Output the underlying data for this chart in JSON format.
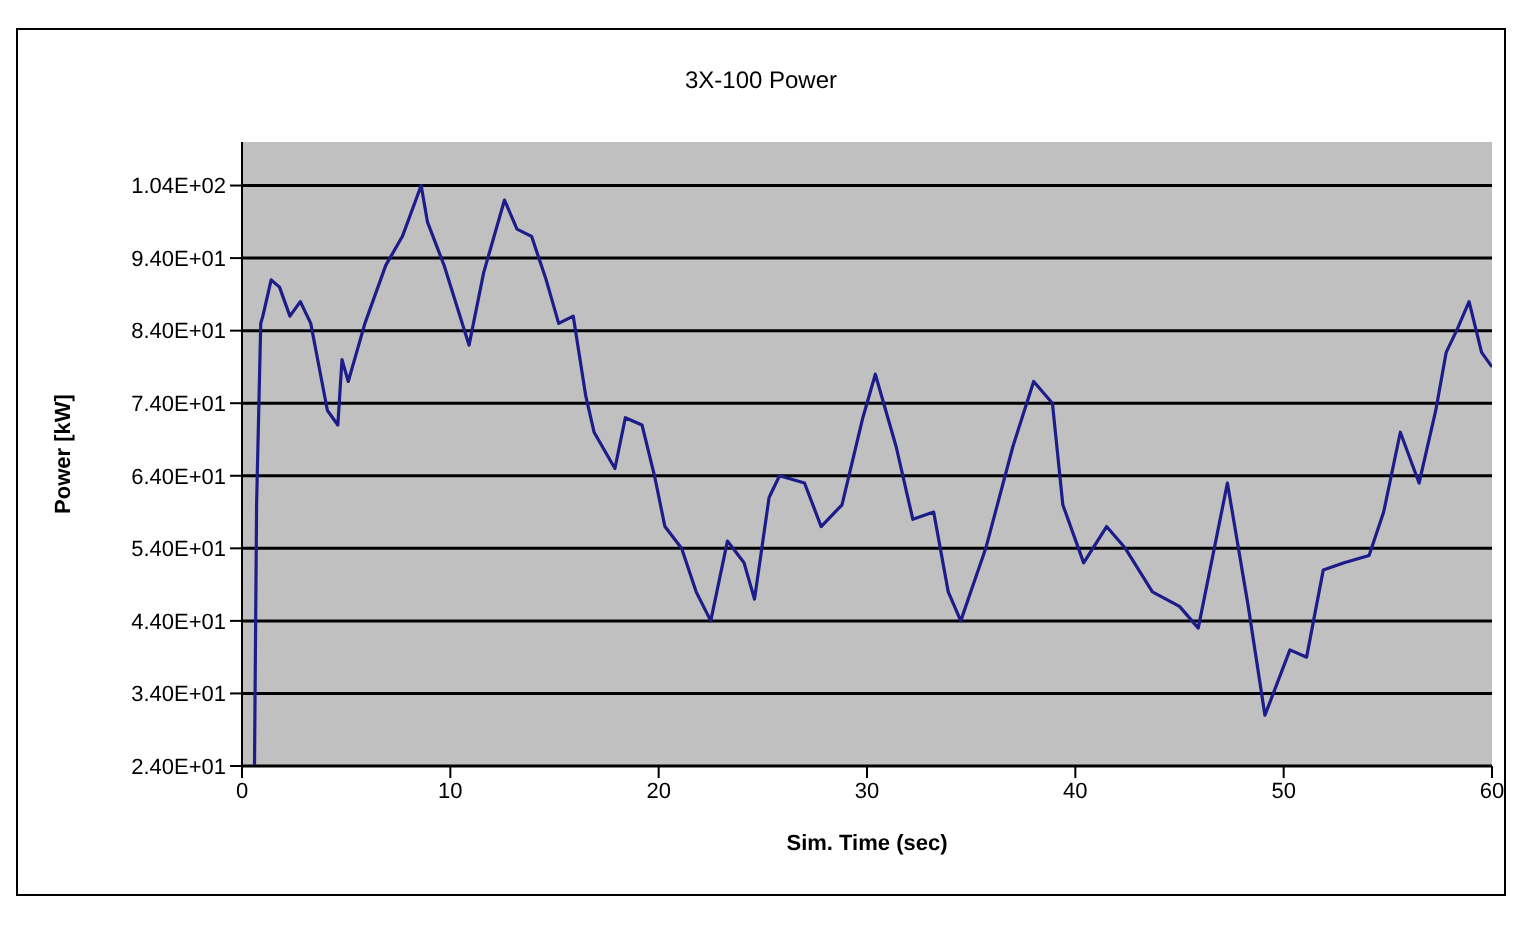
{
  "chart_data": {
    "type": "line",
    "title": "3X-100 Power",
    "xlabel": "Sim. Time (sec)",
    "ylabel": "Power [kW]",
    "x": [
      0.6,
      0.7,
      0.9,
      1.0,
      1.4,
      1.8,
      2.3,
      2.8,
      3.3,
      3.7,
      4.1,
      4.6,
      4.8,
      5.1,
      5.9,
      6.9,
      7.7,
      8.6,
      8.9,
      9.7,
      10.9,
      11.6,
      12.6,
      13.2,
      13.9,
      14.6,
      15.2,
      15.9,
      16.5,
      16.9,
      17.9,
      18.4,
      19.2,
      19.8,
      20.3,
      21.1,
      21.8,
      22.5,
      23.3,
      24.1,
      24.6,
      25.3,
      25.8,
      27.0,
      27.8,
      28.8,
      29.8,
      30.4,
      31.4,
      32.2,
      33.2,
      33.9,
      34.5,
      35.7,
      37.0,
      38.0,
      38.9,
      39.4,
      40.4,
      41.5,
      42.4,
      43.7,
      45.0,
      45.9,
      47.3,
      48.3,
      49.1,
      50.3,
      51.1,
      51.9,
      52.9,
      54.1,
      54.8,
      55.6,
      56.5,
      57.3,
      57.8,
      58.3,
      58.9,
      59.5,
      60.0
    ],
    "series": [
      {
        "color": "#1c1c8a",
        "values": [
          24,
          60,
          85,
          86,
          91,
          90,
          86,
          88,
          85,
          79,
          73,
          71,
          80,
          77,
          85,
          93,
          97,
          104,
          99,
          93,
          82,
          92,
          102,
          98,
          97,
          91,
          85,
          86,
          75,
          70,
          65,
          72,
          71,
          64,
          57,
          54,
          48,
          44,
          55,
          52,
          47,
          61,
          64,
          63,
          57,
          60,
          72,
          78,
          68,
          58,
          59,
          48,
          44,
          54,
          68,
          77,
          74,
          60,
          52,
          57,
          54,
          48,
          46,
          43,
          63,
          46,
          31,
          40,
          39,
          51,
          52,
          53,
          59,
          70,
          63,
          73,
          81,
          84,
          88,
          81,
          79
        ]
      }
    ],
    "xlim": [
      0,
      60
    ],
    "xticks": [
      0,
      10,
      20,
      30,
      40,
      50,
      60
    ],
    "ylim": [
      24,
      110
    ],
    "yticks": [
      {
        "value": 24,
        "label": "2.40E+01"
      },
      {
        "value": 34,
        "label": "3.40E+01"
      },
      {
        "value": 44,
        "label": "4.40E+01"
      },
      {
        "value": 54,
        "label": "5.40E+01"
      },
      {
        "value": 64,
        "label": "6.40E+01"
      },
      {
        "value": 74,
        "label": "7.40E+01"
      },
      {
        "value": 84,
        "label": "8.40E+01"
      },
      {
        "value": 94,
        "label": "9.40E+01"
      },
      {
        "value": 104,
        "label": "1.04E+02"
      }
    ],
    "grid": "y",
    "marker": "none",
    "line_style": "solid",
    "legend": false
  }
}
